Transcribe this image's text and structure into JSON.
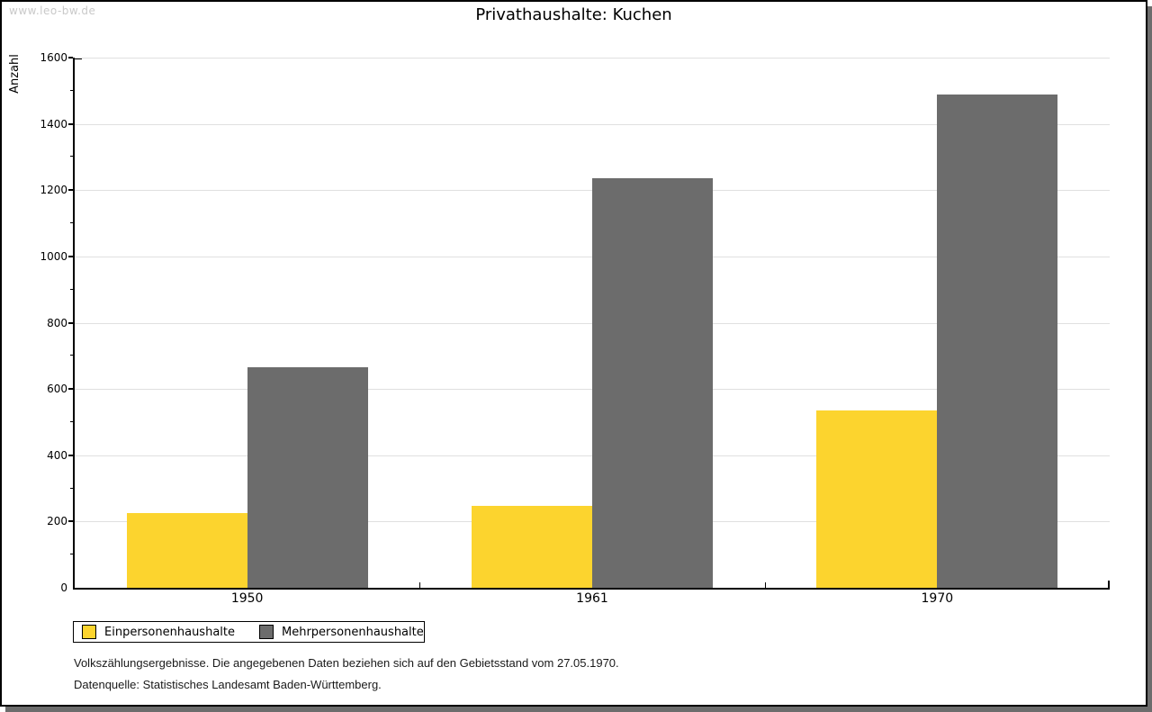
{
  "watermark": "www.leo-bw.de",
  "title": "Privathaushalte: Kuchen",
  "chart_data": {
    "type": "bar",
    "title": "Privathaushalte: Kuchen",
    "categories": [
      "1950",
      "1961",
      "1970"
    ],
    "series": [
      {
        "name": "Einpersonenhaushalte",
        "color": "#fcd42e",
        "values": [
          226,
          247,
          535
        ]
      },
      {
        "name": "Mehrpersonenhaushalte",
        "color": "#6c6c6c",
        "values": [
          666,
          1236,
          1490
        ]
      }
    ],
    "xlabel": "",
    "ylabel": "Anzahl",
    "ylim": [
      0,
      1600
    ],
    "ytick_step": 200,
    "y_minor_tick_step": 100,
    "grid": true,
    "gridline_color": "#e0e0e0",
    "legend_position": "bottom-left"
  },
  "footnotes": [
    "Volkszählungsergebnisse. Die angegebenen Daten beziehen sich auf den Gebietsstand vom 27.05.1970.",
    "Datenquelle: Statistisches Landesamt Baden-Württemberg."
  ]
}
